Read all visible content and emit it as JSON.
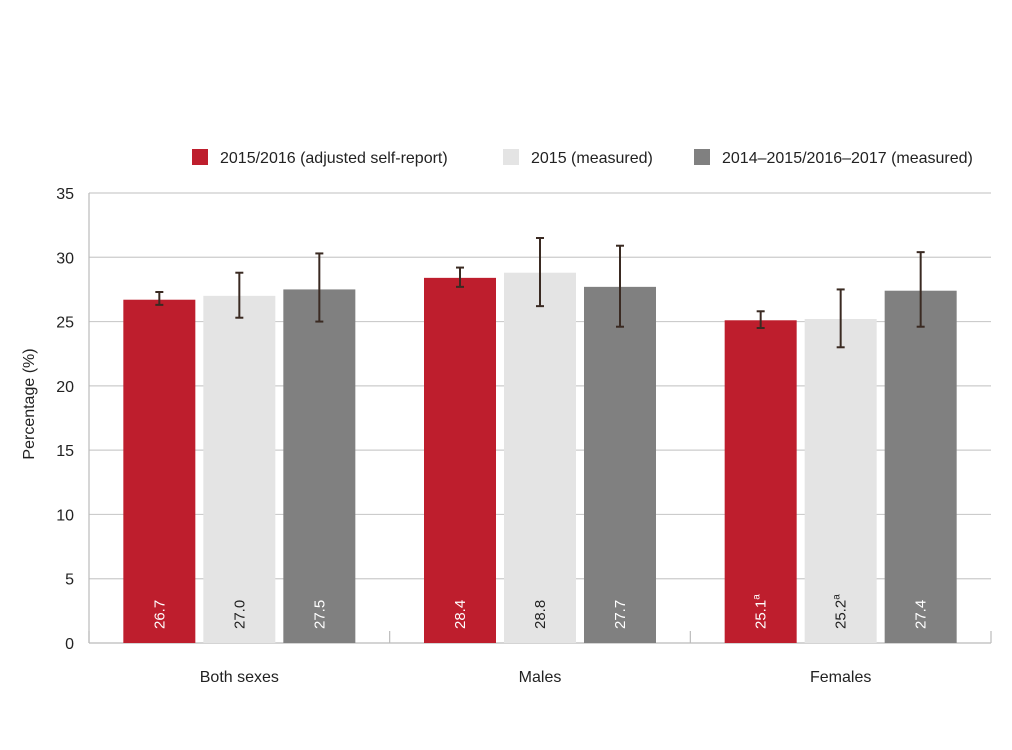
{
  "chart_data": {
    "type": "bar",
    "ylabel": "Percentage (%)",
    "xlabel": "",
    "ylim": [
      0,
      35
    ],
    "yticks": [
      0,
      5,
      10,
      15,
      20,
      25,
      30,
      35
    ],
    "grid": true,
    "legend_position": "top-right",
    "categories": [
      "Both sexes",
      "Males",
      "Females"
    ],
    "series": [
      {
        "name": "2015/2016 (adjusted self-report)",
        "color": "#be1e2d",
        "label_color": "#ffffff",
        "values": [
          26.7,
          28.4,
          25.1
        ],
        "labels": [
          "26.7",
          "28.4",
          "25.1"
        ],
        "label_superscripts": [
          "",
          "",
          "a"
        ],
        "error_low": [
          26.3,
          27.7,
          24.5
        ],
        "error_high": [
          27.3,
          29.2,
          25.8
        ]
      },
      {
        "name": "2015 (measured)",
        "color": "#e4e4e4",
        "label_color": "#222222",
        "values": [
          27.0,
          28.8,
          25.2
        ],
        "labels": [
          "27.0",
          "28.8",
          "25.2"
        ],
        "label_superscripts": [
          "",
          "",
          "a"
        ],
        "error_low": [
          25.3,
          26.2,
          23.0
        ],
        "error_high": [
          28.8,
          31.5,
          27.5
        ]
      },
      {
        "name": "2014–2015/2016–2017 (measured)",
        "color": "#808080",
        "label_color": "#ffffff",
        "values": [
          27.5,
          27.7,
          27.4
        ],
        "labels": [
          "27.5",
          "27.7",
          "27.4"
        ],
        "label_superscripts": [
          "",
          "",
          ""
        ],
        "error_low": [
          25.0,
          24.6,
          24.6
        ],
        "error_high": [
          30.3,
          30.9,
          30.4
        ]
      }
    ]
  }
}
